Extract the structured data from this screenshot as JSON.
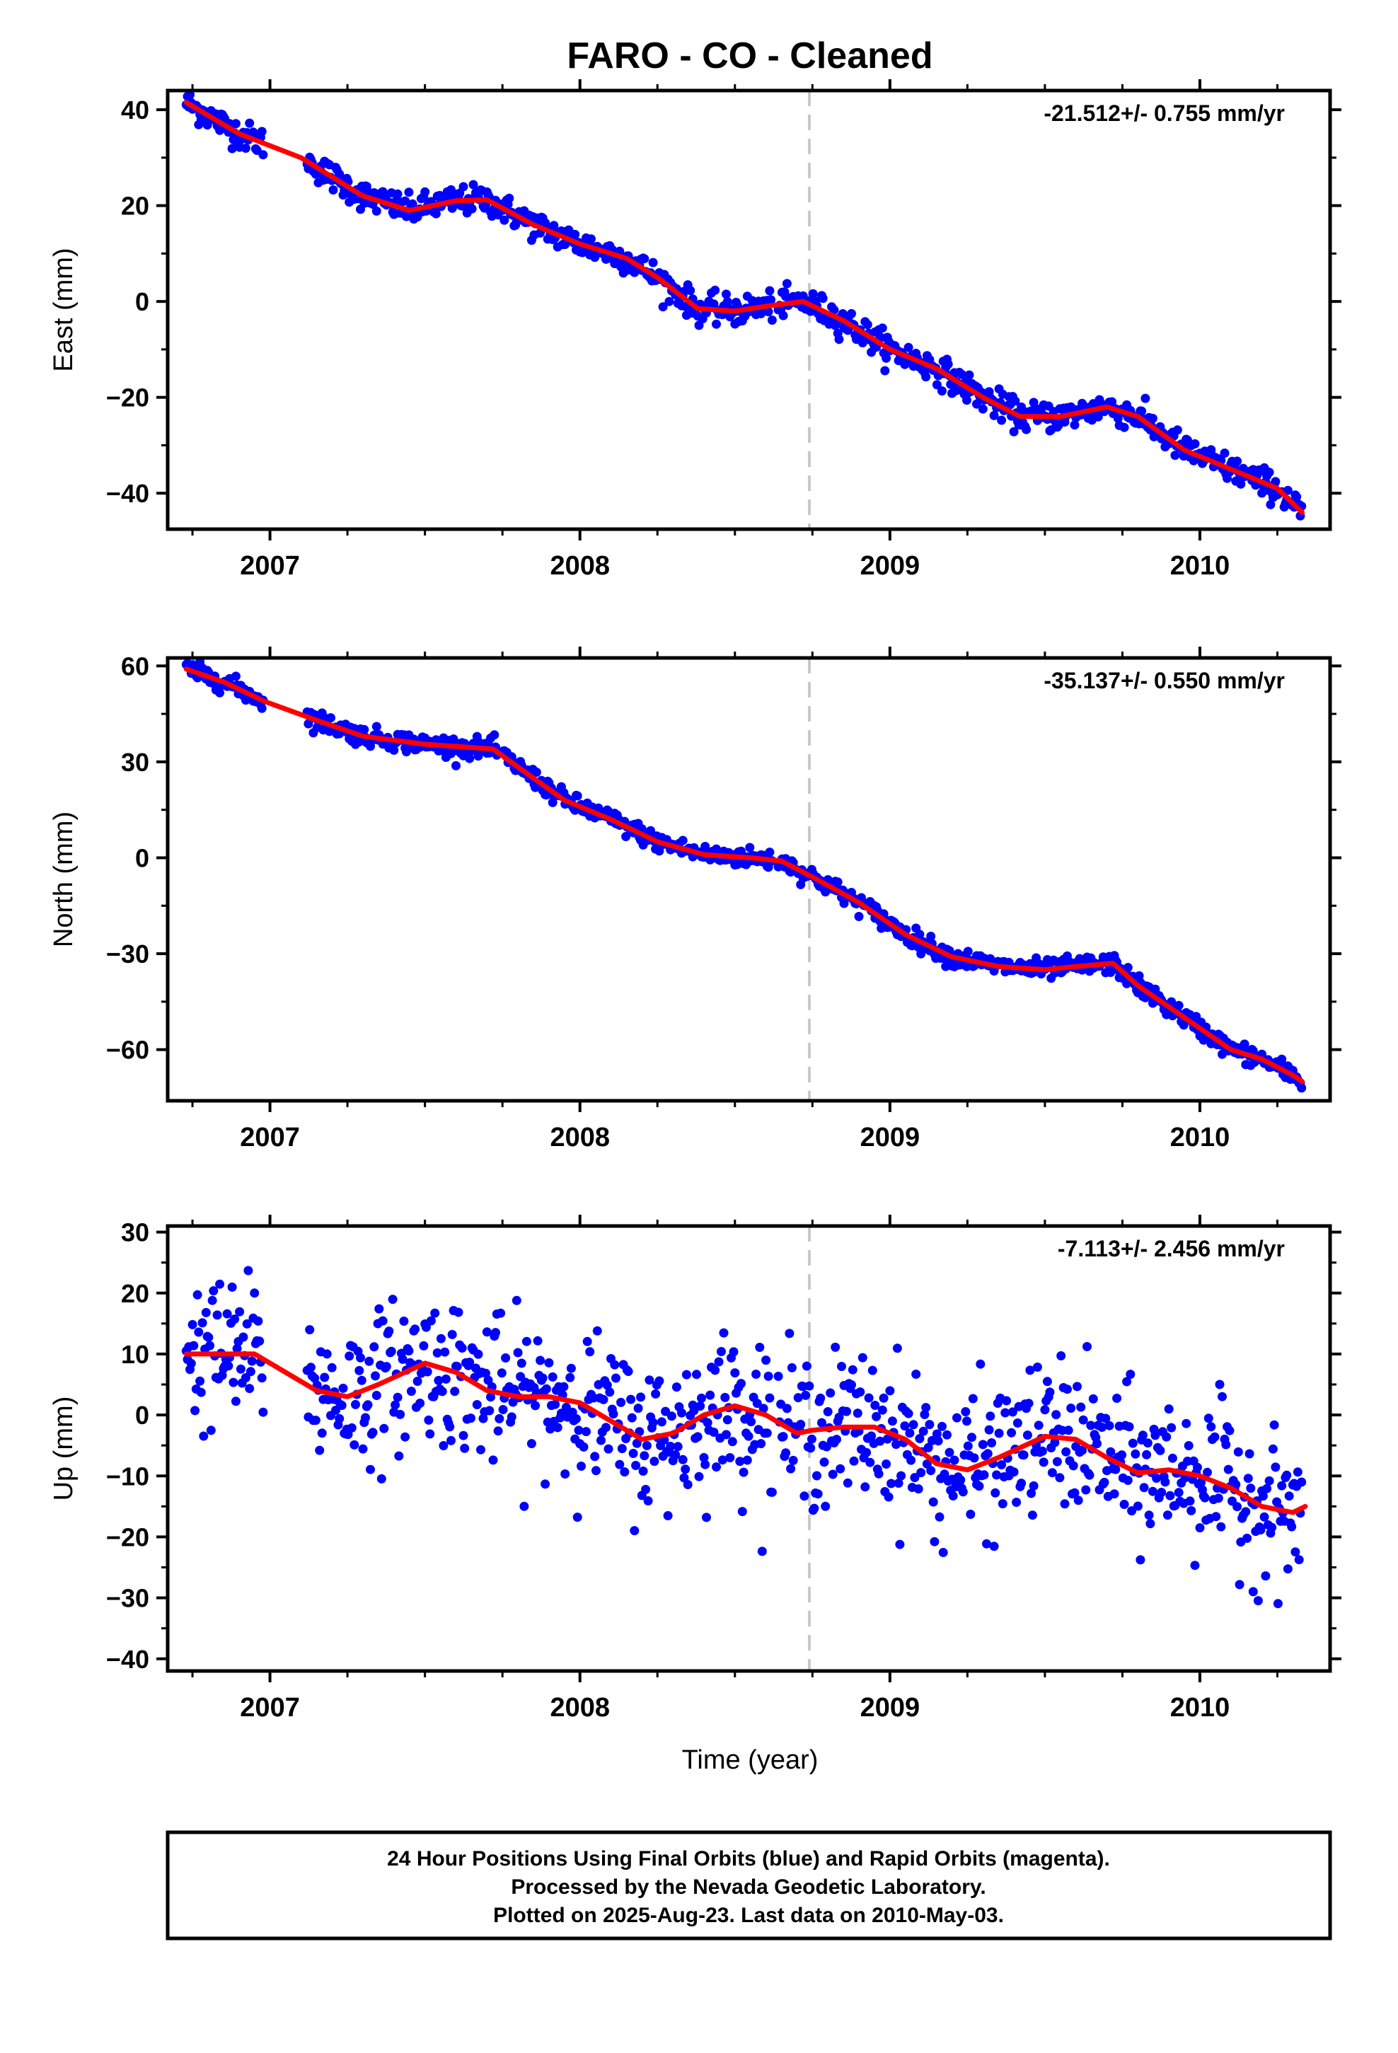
{
  "title": "FARO  - CO - Cleaned",
  "xlabel": "Time (year)",
  "footer": {
    "line1": "24 Hour Positions Using Final Orbits (blue) and Rapid Orbits (magenta).",
    "line2": "Processed by the Nevada Geodetic Laboratory.",
    "line3": "Plotted on 2025-Aug-23. Last data on 2010-May-03."
  },
  "colors": {
    "final_orbits": "#0000ff",
    "trend": "#ff0000",
    "event_line": "#c8c8c8"
  },
  "chart_data": [
    {
      "type": "scatter",
      "ylabel": "East (mm)",
      "rate_label": "-21.512+/- 0.755 mm/yr",
      "xlim": [
        2006.67,
        2010.42
      ],
      "ylim": [
        -47.5,
        44
      ],
      "xticks": [
        2007,
        2008,
        2009,
        2010
      ],
      "yticks": [
        40,
        20,
        0,
        -20,
        -40
      ],
      "event_line_x": 2008.74,
      "trend": [
        [
          2006.73,
          41.5
        ],
        [
          2006.9,
          35
        ],
        [
          2007.1,
          30
        ],
        [
          2007.3,
          22
        ],
        [
          2007.45,
          19
        ],
        [
          2007.6,
          21
        ],
        [
          2007.7,
          21.2
        ],
        [
          2007.85,
          16
        ],
        [
          2008.0,
          12
        ],
        [
          2008.15,
          9
        ],
        [
          2008.25,
          5
        ],
        [
          2008.38,
          -1.5
        ],
        [
          2008.5,
          -2
        ],
        [
          2008.6,
          -1
        ],
        [
          2008.72,
          0
        ],
        [
          2008.85,
          -4
        ],
        [
          2009.0,
          -10
        ],
        [
          2009.15,
          -14
        ],
        [
          2009.3,
          -20
        ],
        [
          2009.42,
          -24
        ],
        [
          2009.55,
          -24
        ],
        [
          2009.7,
          -22
        ],
        [
          2009.8,
          -24
        ],
        [
          2009.95,
          -31
        ],
        [
          2010.1,
          -35
        ],
        [
          2010.25,
          -39
        ],
        [
          2010.33,
          -44
        ]
      ],
      "segments": [
        [
          2006.73,
          2006.98,
          0.004
        ],
        [
          2007.12,
          2008.62,
          0.004
        ],
        [
          2008.64,
          2010.33,
          0.004
        ]
      ],
      "scatter_sd": 1.5
    },
    {
      "type": "scatter",
      "ylabel": "North (mm)",
      "rate_label": "-35.137+/- 0.550 mm/yr",
      "xlim": [
        2006.67,
        2010.42
      ],
      "ylim": [
        -76,
        62.5
      ],
      "xticks": [
        2007,
        2008,
        2009,
        2010
      ],
      "yticks": [
        60,
        30,
        0,
        -30,
        -60
      ],
      "event_line_x": 2008.74,
      "trend": [
        [
          2006.73,
          59
        ],
        [
          2006.85,
          55
        ],
        [
          2006.98,
          49
        ],
        [
          2007.15,
          43
        ],
        [
          2007.3,
          38
        ],
        [
          2007.5,
          35.5
        ],
        [
          2007.72,
          34
        ],
        [
          2007.82,
          27
        ],
        [
          2007.95,
          18
        ],
        [
          2008.1,
          12
        ],
        [
          2008.25,
          5
        ],
        [
          2008.4,
          1
        ],
        [
          2008.55,
          0
        ],
        [
          2008.65,
          -1
        ],
        [
          2008.75,
          -6
        ],
        [
          2008.9,
          -14
        ],
        [
          2009.05,
          -24
        ],
        [
          2009.2,
          -31
        ],
        [
          2009.35,
          -34
        ],
        [
          2009.5,
          -35
        ],
        [
          2009.6,
          -34
        ],
        [
          2009.72,
          -33
        ],
        [
          2009.8,
          -40
        ],
        [
          2009.95,
          -50
        ],
        [
          2010.1,
          -60
        ],
        [
          2010.2,
          -63
        ],
        [
          2010.3,
          -68
        ],
        [
          2010.33,
          -70
        ]
      ],
      "segments": [
        [
          2006.73,
          2006.98,
          0.004
        ],
        [
          2007.12,
          2008.62,
          0.004
        ],
        [
          2008.64,
          2010.33,
          0.004
        ]
      ],
      "scatter_sd": 1.5
    },
    {
      "type": "scatter",
      "ylabel": "Up (mm)",
      "rate_label": "-7.113+/- 2.456 mm/yr",
      "xlim": [
        2006.67,
        2010.42
      ],
      "ylim": [
        -42,
        31
      ],
      "xticks": [
        2007,
        2008,
        2009,
        2010
      ],
      "yticks": [
        30,
        20,
        10,
        0,
        -10,
        -20,
        -30,
        -40
      ],
      "event_line_x": 2008.74,
      "trend": [
        [
          2006.73,
          10
        ],
        [
          2006.85,
          10
        ],
        [
          2006.95,
          10
        ],
        [
          2007.05,
          7
        ],
        [
          2007.15,
          4
        ],
        [
          2007.25,
          3
        ],
        [
          2007.35,
          5
        ],
        [
          2007.5,
          8.5
        ],
        [
          2007.6,
          7
        ],
        [
          2007.7,
          4
        ],
        [
          2007.8,
          3
        ],
        [
          2007.9,
          3
        ],
        [
          2008.0,
          2
        ],
        [
          2008.1,
          -1
        ],
        [
          2008.2,
          -4
        ],
        [
          2008.3,
          -3
        ],
        [
          2008.4,
          0
        ],
        [
          2008.5,
          1.5
        ],
        [
          2008.6,
          0
        ],
        [
          2008.7,
          -3
        ],
        [
          2008.75,
          -2.5
        ],
        [
          2008.85,
          -2
        ],
        [
          2008.95,
          -2
        ],
        [
          2009.05,
          -4
        ],
        [
          2009.15,
          -8
        ],
        [
          2009.25,
          -9
        ],
        [
          2009.35,
          -7
        ],
        [
          2009.5,
          -3.5
        ],
        [
          2009.6,
          -4
        ],
        [
          2009.7,
          -7
        ],
        [
          2009.8,
          -9.5
        ],
        [
          2009.9,
          -9
        ],
        [
          2010.0,
          -10
        ],
        [
          2010.1,
          -12
        ],
        [
          2010.2,
          -15
        ],
        [
          2010.3,
          -16
        ],
        [
          2010.34,
          -15
        ]
      ],
      "segments": [
        [
          2006.73,
          2006.98,
          0.004
        ],
        [
          2007.12,
          2008.62,
          0.004
        ],
        [
          2008.64,
          2010.33,
          0.004
        ]
      ],
      "scatter_sd": 6
    }
  ]
}
